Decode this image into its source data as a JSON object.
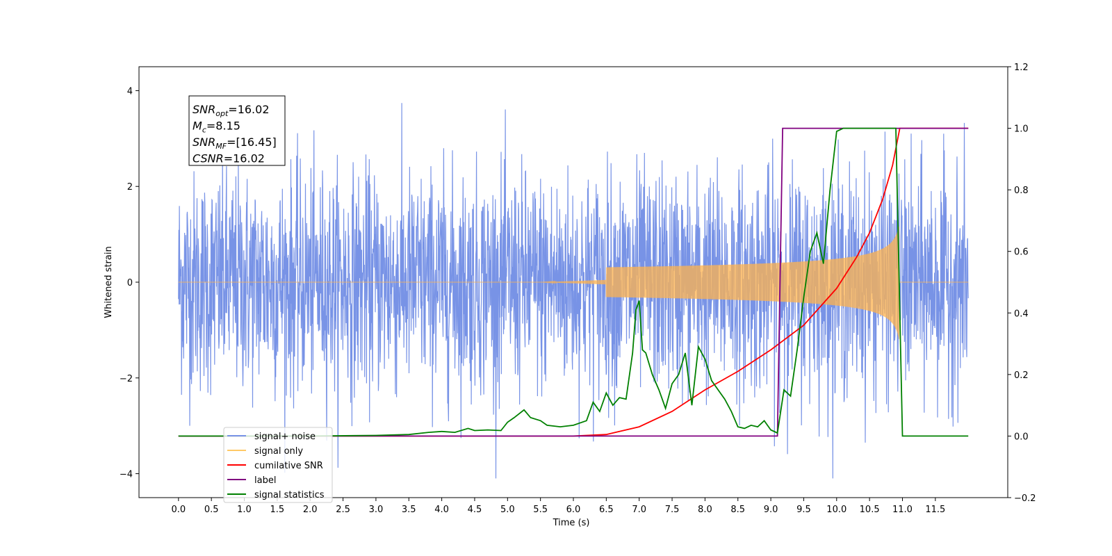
{
  "chart_data": {
    "type": "line",
    "xlabel": "Time (s)",
    "ylabel": "Whitened strain",
    "xlim": [
      -0.6,
      12.6
    ],
    "ylim": [
      -4.5,
      4.5
    ],
    "y2lim": [
      -0.2,
      1.2
    ],
    "x_ticks": [
      0.0,
      0.5,
      1.0,
      1.5,
      2.0,
      2.5,
      3.0,
      3.5,
      4.0,
      4.5,
      5.0,
      5.5,
      6.0,
      6.5,
      7.0,
      7.5,
      8.0,
      8.5,
      9.0,
      9.5,
      10.0,
      10.5,
      11.0,
      11.5
    ],
    "x_tick_labels": [
      "0.0",
      "0.5",
      "1.0",
      "1.5",
      "2.0",
      "2.5",
      "3.0",
      "3.5",
      "4.0",
      "4.5",
      "5.0",
      "5.5",
      "6.0",
      "6.5",
      "7.0",
      "7.5",
      "8.0",
      "8.5",
      "9.0",
      "9.5",
      "10.0",
      "10.5",
      "11.0",
      "11.5"
    ],
    "y_ticks": [
      -4,
      -2,
      0,
      2,
      4
    ],
    "y_tick_labels": [
      "−4",
      "−2",
      "0",
      "2",
      "4"
    ],
    "y2_ticks": [
      -0.2,
      0.0,
      0.2,
      0.4,
      0.6,
      0.8,
      1.0,
      1.2
    ],
    "y2_tick_labels": [
      "−0.2",
      "0.0",
      "0.2",
      "0.4",
      "0.6",
      "0.8",
      "1.0",
      "1.2"
    ],
    "grid": false,
    "legend_placement": "lower-left",
    "legend": [
      {
        "label": "signal+ noise",
        "color": "#7893e6"
      },
      {
        "label": "signal only",
        "color": "#ffc966"
      },
      {
        "label": "cumilative SNR",
        "color": "#ff0000"
      },
      {
        "label": "label",
        "color": "#800080"
      },
      {
        "label": "signal statistics",
        "color": "#008000"
      }
    ],
    "annotation": {
      "lines": [
        {
          "sym": "SNR",
          "sub": "opt",
          "rest": "=16.02"
        },
        {
          "sym": "M",
          "sub": "c",
          "rest": "=8.15"
        },
        {
          "sym": "SNR",
          "sub": "MF",
          "rest": "=[16.45]"
        },
        {
          "sym": "CSNR",
          "sub": "",
          "rest": "=16.02"
        }
      ]
    },
    "noise": {
      "x_start": 0.0,
      "x_end": 12.0,
      "typical_amplitude": 2.4,
      "max_y": 4.1,
      "min_y": -4.1,
      "color": "#7893e6"
    },
    "signal": {
      "x_start": 6.5,
      "x_merge": 10.95,
      "peak_amplitude": 1.2,
      "color": "#ffb34d"
    },
    "series": [
      {
        "name": "cumilative SNR",
        "axis": "right",
        "color": "#ff0000",
        "x": [
          0.0,
          5.5,
          6.0,
          6.5,
          7.0,
          7.5,
          8.0,
          8.5,
          9.0,
          9.5,
          10.0,
          10.3,
          10.5,
          10.7,
          10.85,
          10.95,
          10.96,
          12.0
        ],
        "y": [
          0.0,
          0.0,
          0.0,
          0.005,
          0.03,
          0.08,
          0.15,
          0.21,
          0.28,
          0.36,
          0.48,
          0.58,
          0.66,
          0.77,
          0.88,
          0.99,
          1.0,
          1.0
        ]
      },
      {
        "name": "label",
        "axis": "right",
        "color": "#800080",
        "x": [
          0.0,
          9.1,
          9.18,
          10.97,
          11.0,
          12.0
        ],
        "y": [
          0.0,
          0.0,
          1.0,
          1.0,
          1.0,
          1.0
        ]
      },
      {
        "name": "signal statistics",
        "axis": "right",
        "color": "#008000",
        "x": [
          0.0,
          2.0,
          3.0,
          3.5,
          3.8,
          4.0,
          4.2,
          4.4,
          4.5,
          4.7,
          4.9,
          5.0,
          5.1,
          5.25,
          5.35,
          5.5,
          5.6,
          5.8,
          6.0,
          6.2,
          6.3,
          6.4,
          6.5,
          6.6,
          6.7,
          6.8,
          6.9,
          6.95,
          7.0,
          7.05,
          7.1,
          7.2,
          7.3,
          7.4,
          7.5,
          7.6,
          7.7,
          7.8,
          7.9,
          8.0,
          8.1,
          8.2,
          8.3,
          8.4,
          8.5,
          8.6,
          8.7,
          8.8,
          8.9,
          9.0,
          9.1,
          9.2,
          9.3,
          9.4,
          9.5,
          9.6,
          9.7,
          9.8,
          9.9,
          10.0,
          10.1,
          10.5,
          10.9,
          11.0,
          11.1,
          12.0
        ],
        "y": [
          0.0,
          0.0,
          0.002,
          0.005,
          0.012,
          0.015,
          0.012,
          0.025,
          0.018,
          0.02,
          0.018,
          0.045,
          0.06,
          0.085,
          0.06,
          0.05,
          0.035,
          0.03,
          0.035,
          0.05,
          0.11,
          0.08,
          0.14,
          0.1,
          0.125,
          0.12,
          0.27,
          0.41,
          0.44,
          0.28,
          0.27,
          0.2,
          0.15,
          0.09,
          0.17,
          0.2,
          0.27,
          0.1,
          0.29,
          0.25,
          0.18,
          0.15,
          0.12,
          0.08,
          0.03,
          0.025,
          0.035,
          0.03,
          0.05,
          0.02,
          0.01,
          0.15,
          0.13,
          0.28,
          0.45,
          0.6,
          0.66,
          0.56,
          0.8,
          0.99,
          1.0,
          1.0,
          1.0,
          0.0,
          0.0,
          0.0
        ]
      }
    ]
  }
}
